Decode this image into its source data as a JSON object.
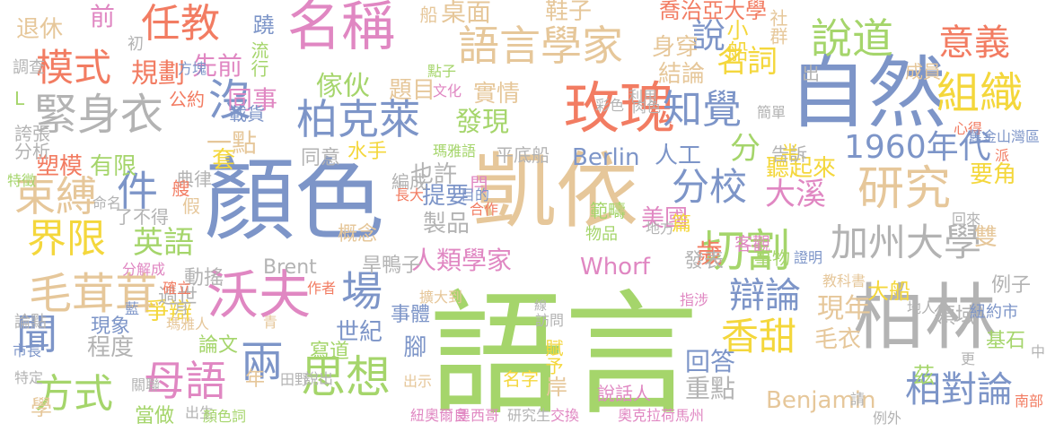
{
  "word_cloud": {
    "palette": [
      "#f27c62",
      "#7d95c8",
      "#e6c79a",
      "#e087c2",
      "#a5d56b",
      "#f4d73c",
      "#b3b3b3"
    ],
    "words": [
      {
        "text": "語言",
        "color": "#a5d56b"
      },
      {
        "text": "凱依",
        "color": "#e6c79a"
      },
      {
        "text": "顏色",
        "color": "#7d95c8"
      },
      {
        "text": "自然",
        "color": "#7d95c8"
      },
      {
        "text": "柏林",
        "color": "#b3b3b3"
      },
      {
        "text": "玫瑰",
        "color": "#f27c62"
      },
      {
        "text": "名稱",
        "color": "#e087c2"
      },
      {
        "text": "語言學家",
        "color": "#e6c79a"
      },
      {
        "text": "沃夫",
        "color": "#e087c2"
      },
      {
        "text": "研究",
        "color": "#e6c79a"
      },
      {
        "text": "緊身衣",
        "color": "#b3b3b3"
      },
      {
        "text": "柏克萊",
        "color": "#7d95c8"
      },
      {
        "text": "思想",
        "color": "#a5d56b"
      },
      {
        "text": "切割",
        "color": "#a5d56b"
      },
      {
        "text": "加州大學",
        "color": "#b3b3b3"
      },
      {
        "text": "毛茸茸",
        "color": "#e6c79a"
      },
      {
        "text": "1960年代",
        "color": "#7d95c8"
      },
      {
        "text": "束縛",
        "color": "#e6c79a"
      },
      {
        "text": "任教",
        "color": "#f27c62"
      },
      {
        "text": "說道",
        "color": "#a5d56b"
      },
      {
        "text": "組織",
        "color": "#f4d73c"
      },
      {
        "text": "意義",
        "color": "#f27c62"
      },
      {
        "text": "知覺",
        "color": "#7d95c8"
      },
      {
        "text": "模式",
        "color": "#f27c62"
      },
      {
        "text": "分校",
        "color": "#7d95c8"
      },
      {
        "text": "界限",
        "color": "#f4d73c"
      },
      {
        "text": "母語",
        "color": "#e087c2"
      },
      {
        "text": "方式",
        "color": "#a5d56b"
      },
      {
        "text": "相對論",
        "color": "#7d95c8"
      },
      {
        "text": "香甜",
        "color": "#f4d73c"
      },
      {
        "text": "辯論",
        "color": "#7d95c8"
      },
      {
        "text": "人類學家",
        "color": "#e087c2"
      },
      {
        "text": "發現",
        "color": "#a5d56b"
      },
      {
        "text": "英語",
        "color": "#a5d56b"
      },
      {
        "text": "大溪",
        "color": "#e087c2"
      },
      {
        "text": "Benjamin",
        "color": "#e6c79a"
      },
      {
        "text": "Whorf",
        "color": "#e087c2"
      },
      {
        "text": "沒",
        "color": "#7d95c8"
      },
      {
        "text": "說",
        "color": "#7d95c8"
      },
      {
        "text": "件",
        "color": "#7d95c8"
      },
      {
        "text": "分",
        "color": "#a5d56b"
      },
      {
        "text": "場",
        "color": "#7d95c8"
      },
      {
        "text": "聞",
        "color": "#7d95c8"
      },
      {
        "text": "兩",
        "color": "#7d95c8"
      },
      {
        "text": "Brent",
        "color": "#b3b3b3"
      },
      {
        "text": "名詞",
        "color": "#f4d73c"
      },
      {
        "text": "現年",
        "color": "#e6c79a"
      },
      {
        "text": "回答",
        "color": "#7d95c8"
      },
      {
        "text": "重點",
        "color": "#b3b3b3"
      },
      {
        "text": "毛衣",
        "color": "#e6c79a"
      },
      {
        "text": "規劃",
        "color": "#f27c62"
      },
      {
        "text": "先前",
        "color": "#e087c2"
      },
      {
        "text": "同事",
        "color": "#e087c2"
      },
      {
        "text": "傢伙",
        "color": "#a5d56b"
      },
      {
        "text": "題目",
        "color": "#e6c79a"
      },
      {
        "text": "實情",
        "color": "#e6c79a"
      },
      {
        "text": "桌面",
        "color": "#e6c79a"
      },
      {
        "text": "鞋子",
        "color": "#e6c79a"
      },
      {
        "text": "喬治亞大學",
        "color": "#f27c62"
      },
      {
        "text": "身穿",
        "color": "#e6c79a"
      },
      {
        "text": "結論",
        "color": "#e6c79a"
      },
      {
        "text": "小船",
        "color": "#f4d73c"
      },
      {
        "text": "塑模",
        "color": "#f27c62"
      },
      {
        "text": "有限",
        "color": "#a5d56b"
      },
      {
        "text": "也許",
        "color": "#b3b3b3"
      },
      {
        "text": "水手",
        "color": "#f4d73c"
      },
      {
        "text": "提要",
        "color": "#7d95c8"
      },
      {
        "text": "製品",
        "color": "#b3b3b3"
      },
      {
        "text": "要角",
        "color": "#f4d73c"
      },
      {
        "text": "美國",
        "color": "#e087c2"
      },
      {
        "text": "聽起來",
        "color": "#f4d73c"
      },
      {
        "text": "告訴",
        "color": "#b3b3b3"
      },
      {
        "text": "一點",
        "color": "#e6c79a"
      },
      {
        "text": "套",
        "color": "#f4d73c"
      },
      {
        "text": "載貨",
        "color": "#7d95c8"
      },
      {
        "text": "爭辯",
        "color": "#f4d73c"
      },
      {
        "text": "程度",
        "color": "#b3b3b3"
      },
      {
        "text": "現象",
        "color": "#7d95c8"
      },
      {
        "text": "世紀",
        "color": "#7d95c8"
      },
      {
        "text": "寫道",
        "color": "#a5d56b"
      },
      {
        "text": "大船",
        "color": "#f4d73c"
      },
      {
        "text": "領域",
        "color": "#b3b3b3"
      },
      {
        "text": "例子",
        "color": "#b3b3b3"
      },
      {
        "text": "基石",
        "color": "#a5d56b"
      },
      {
        "text": "旱鴨子",
        "color": "#b3b3b3"
      },
      {
        "text": "動搖",
        "color": "#b3b3b3"
      },
      {
        "text": "過世",
        "color": "#b3b3b3"
      },
      {
        "text": "論文",
        "color": "#a5d56b"
      },
      {
        "text": "年",
        "color": "#e6c79a"
      },
      {
        "text": "腳",
        "color": "#7d95c8"
      },
      {
        "text": "事體",
        "color": "#7d95c8"
      },
      {
        "text": "岸",
        "color": "#e6c79a"
      },
      {
        "text": "說話人",
        "color": "#e087c2"
      },
      {
        "text": "名字",
        "color": "#f4d73c"
      },
      {
        "text": "平底船",
        "color": "#b3b3b3"
      },
      {
        "text": "Berlin",
        "color": "#7d95c8"
      },
      {
        "text": "人工",
        "color": "#7d95c8"
      },
      {
        "text": "歲",
        "color": "#f27c62"
      },
      {
        "text": "篇",
        "color": "#f4d73c"
      },
      {
        "text": "客觀",
        "color": "#e087c2"
      },
      {
        "text": "發表",
        "color": "#b3b3b3"
      },
      {
        "text": "雙",
        "color": "#e6c79a"
      },
      {
        "text": "茲",
        "color": "#a5d56b"
      },
      {
        "text": "退休",
        "color": "#e6c79a"
      },
      {
        "text": "前",
        "color": "#e087c2"
      },
      {
        "text": "蹺",
        "color": "#7d95c8"
      },
      {
        "text": "流行",
        "color": "#a5d56b"
      },
      {
        "text": "船",
        "color": "#e6c79a"
      },
      {
        "text": "社群",
        "color": "#e6c79a"
      },
      {
        "text": "成員",
        "color": "#e6c79a"
      },
      {
        "text": "出",
        "color": "#b3b3b3"
      },
      {
        "text": "初",
        "color": "#b3b3b3"
      },
      {
        "text": "L",
        "color": "#a5d56b"
      },
      {
        "text": "公約",
        "color": "#f27c62"
      },
      {
        "text": "誇張",
        "color": "#b3b3b3"
      },
      {
        "text": "分析",
        "color": "#b3b3b3"
      },
      {
        "text": "方塊",
        "color": "#7d95c8"
      },
      {
        "text": "點子",
        "color": "#a5d56b"
      },
      {
        "text": "文化",
        "color": "#e087c2"
      },
      {
        "text": "利用",
        "color": "#b3b3b3"
      },
      {
        "text": "肉色",
        "color": "#b3b3b3"
      },
      {
        "text": "彩色",
        "color": "#b3b3b3"
      },
      {
        "text": "半",
        "color": "#f4d73c"
      },
      {
        "text": "心得",
        "color": "#f27c62"
      },
      {
        "text": "舊金山灣區",
        "color": "#7d95c8"
      },
      {
        "text": "簡單",
        "color": "#b3b3b3"
      },
      {
        "text": "派",
        "color": "#f27c62"
      },
      {
        "text": "調查",
        "color": "#b3b3b3"
      },
      {
        "text": "典律",
        "color": "#b3b3b3"
      },
      {
        "text": "艘",
        "color": "#f27c62"
      },
      {
        "text": "假",
        "color": "#e6c79a"
      },
      {
        "text": "了不得",
        "color": "#b3b3b3"
      },
      {
        "text": "同意",
        "color": "#b3b3b3"
      },
      {
        "text": "瑪雅語",
        "color": "#a5d56b"
      },
      {
        "text": "編成",
        "color": "#b3b3b3"
      },
      {
        "text": "閂",
        "color": "#e087c2"
      },
      {
        "text": "長大",
        "color": "#f27c62"
      },
      {
        "text": "目的",
        "color": "#7d95c8"
      },
      {
        "text": "合作",
        "color": "#f27c62"
      },
      {
        "text": "範疇",
        "color": "#a5d56b"
      },
      {
        "text": "物品",
        "color": "#a5d56b"
      },
      {
        "text": "地方",
        "color": "#b3b3b3"
      },
      {
        "text": "回來",
        "color": "#b3b3b3"
      },
      {
        "text": "特徵",
        "color": "#a5d56b"
      },
      {
        "text": "命名",
        "color": "#b3b3b3"
      },
      {
        "text": "概念",
        "color": "#e6c79a"
      },
      {
        "text": "事物",
        "color": "#a5d56b"
      },
      {
        "text": "證明",
        "color": "#7d95c8"
      },
      {
        "text": "教科書",
        "color": "#e6c79a"
      },
      {
        "text": "分解成",
        "color": "#e087c2"
      },
      {
        "text": "確立",
        "color": "#f27c62"
      },
      {
        "text": "作者",
        "color": "#f27c62"
      },
      {
        "text": "擴大到",
        "color": "#e6c79a"
      },
      {
        "text": "線",
        "color": "#b3b3b3"
      },
      {
        "text": "指涉",
        "color": "#e087c2"
      },
      {
        "text": "地人",
        "color": "#b3b3b3"
      },
      {
        "text": "紐約市",
        "color": "#7d95c8"
      },
      {
        "text": "青",
        "color": "#e6c79a"
      },
      {
        "text": "藍",
        "color": "#7d95c8"
      },
      {
        "text": "月",
        "color": "#b3b3b3"
      },
      {
        "text": "論點",
        "color": "#b3b3b3"
      },
      {
        "text": "瑪雅人",
        "color": "#e6c79a"
      },
      {
        "text": "市長",
        "color": "#7d95c8"
      },
      {
        "text": "特定",
        "color": "#b3b3b3"
      },
      {
        "text": "學",
        "color": "#e6c79a"
      },
      {
        "text": "當做",
        "color": "#a5d56b"
      },
      {
        "text": "關聯",
        "color": "#b3b3b3"
      },
      {
        "text": "出生",
        "color": "#b3b3b3"
      },
      {
        "text": "顏色詞",
        "color": "#a5d56b"
      },
      {
        "text": "田野",
        "color": "#b3b3b3"
      },
      {
        "text": "說出",
        "color": "#b3b3b3"
      },
      {
        "text": "出示",
        "color": "#e6c79a"
      },
      {
        "text": "訪問",
        "color": "#b3b3b3"
      },
      {
        "text": "賦予",
        "color": "#f4d73c"
      },
      {
        "text": "紐奧爾良",
        "color": "#e087c2"
      },
      {
        "text": "墨西哥",
        "color": "#e087c2"
      },
      {
        "text": "研究生",
        "color": "#b3b3b3"
      },
      {
        "text": "交換",
        "color": "#e087c2"
      },
      {
        "text": "奧克拉荷馬州",
        "color": "#e087c2"
      },
      {
        "text": "例外",
        "color": "#b3b3b3"
      },
      {
        "text": "請",
        "color": "#b3b3b3"
      },
      {
        "text": "南部",
        "color": "#f27c62"
      },
      {
        "text": "更",
        "color": "#b3b3b3"
      },
      {
        "text": "中",
        "color": "#b3b3b3"
      }
    ]
  }
}
